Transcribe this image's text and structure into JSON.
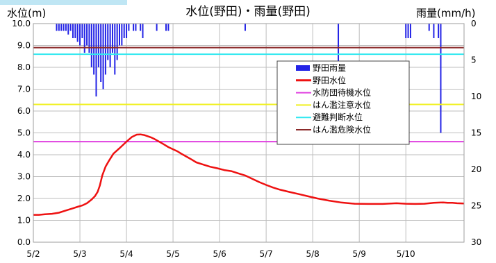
{
  "chart_data": {
    "type": "line",
    "title": "水位(野田)・雨量(野田)",
    "ylabel_left": "水位(m)",
    "ylabel_right": "雨量(mm/h)",
    "ylim_left": [
      0,
      10
    ],
    "ylim_right": [
      0,
      30
    ],
    "right_axis_inverted": true,
    "yticks_left": [
      "0.0",
      "1.0",
      "2.0",
      "3.0",
      "4.0",
      "5.0",
      "6.0",
      "7.0",
      "8.0",
      "9.0",
      "10.0"
    ],
    "yticks_right": [
      "0",
      "5",
      "10",
      "15",
      "20",
      "25",
      "30"
    ],
    "xticks": [
      "5/2",
      "5/3",
      "5/4",
      "5/5",
      "5/6",
      "5/7",
      "5/8",
      "5/9",
      "5/10"
    ],
    "xlim_days": [
      0,
      9.25
    ],
    "grid": true,
    "legend_position": "center-right",
    "colors": {
      "rain": "#2323e6",
      "level": "#ee1111",
      "suibou": "#e040e0",
      "chuui": "#f0f020",
      "hinan": "#30e8f0",
      "kiken": "#8b2a2a",
      "grid": "#bdbdbd",
      "tab": "#bfe6f4"
    },
    "thresholds": [
      {
        "name": "水防団待機水位",
        "value": 4.6,
        "color_key": "suibou"
      },
      {
        "name": "はん濫注意水位",
        "value": 6.3,
        "color_key": "chuui"
      },
      {
        "name": "避難判断水位",
        "value": 8.6,
        "color_key": "hinan"
      },
      {
        "name": "はん濫危険水位",
        "value": 8.9,
        "color_key": "kiken"
      }
    ],
    "legend": [
      "野田雨量",
      "野田水位",
      "水防団待機水位",
      "はん濫注意水位",
      "避難判断水位",
      "はん濫危険水位"
    ],
    "level_series": {
      "name": "野田水位",
      "x": [
        0,
        0.12,
        0.25,
        0.4,
        0.55,
        0.7,
        0.85,
        0.95,
        1.05,
        1.15,
        1.25,
        1.32,
        1.38,
        1.43,
        1.48,
        1.55,
        1.63,
        1.72,
        1.85,
        2.0,
        2.12,
        2.22,
        2.3,
        2.38,
        2.45,
        2.52,
        2.6,
        2.7,
        2.8,
        2.9,
        3.0,
        3.1,
        3.2,
        3.3,
        3.4,
        3.5,
        3.65,
        3.8,
        3.95,
        4.1,
        4.25,
        4.4,
        4.55,
        4.7,
        4.85,
        5.0,
        5.15,
        5.3,
        5.5,
        5.7,
        5.9,
        6.1,
        6.35,
        6.6,
        6.9,
        7.2,
        7.5,
        7.8,
        8.0,
        8.2,
        8.4,
        8.6,
        8.8,
        8.9,
        9.0,
        9.1,
        9.25
      ],
      "y": [
        1.25,
        1.25,
        1.28,
        1.3,
        1.35,
        1.45,
        1.55,
        1.62,
        1.68,
        1.78,
        1.95,
        2.1,
        2.3,
        2.6,
        3.05,
        3.45,
        3.75,
        4.05,
        4.3,
        4.6,
        4.82,
        4.92,
        4.93,
        4.9,
        4.85,
        4.8,
        4.72,
        4.6,
        4.48,
        4.35,
        4.25,
        4.15,
        4.02,
        3.9,
        3.78,
        3.65,
        3.55,
        3.45,
        3.38,
        3.3,
        3.25,
        3.15,
        3.05,
        2.9,
        2.75,
        2.62,
        2.5,
        2.4,
        2.3,
        2.2,
        2.1,
        2.0,
        1.9,
        1.82,
        1.76,
        1.75,
        1.75,
        1.78,
        1.76,
        1.75,
        1.76,
        1.8,
        1.82,
        1.8,
        1.8,
        1.78,
        1.77
      ]
    },
    "rain_series": {
      "name": "野田雨量",
      "x": [
        0.5,
        0.55,
        0.6,
        0.65,
        0.7,
        0.75,
        0.8,
        0.85,
        0.9,
        0.95,
        1.0,
        1.05,
        1.1,
        1.15,
        1.2,
        1.25,
        1.3,
        1.35,
        1.4,
        1.45,
        1.5,
        1.55,
        1.6,
        1.65,
        1.7,
        1.75,
        1.8,
        1.85,
        1.9,
        1.95,
        2.0,
        2.05,
        2.15,
        2.2,
        2.3,
        2.35,
        2.65,
        2.85,
        2.9,
        4.55,
        6.55,
        8.0,
        8.05,
        8.1,
        8.5,
        8.6,
        8.7,
        8.75
      ],
      "values": [
        1,
        1,
        1,
        1,
        1,
        1.5,
        1,
        2,
        2,
        2.5,
        3,
        2,
        4,
        3,
        4,
        6,
        7,
        10,
        6,
        8,
        9,
        7,
        5,
        6,
        4,
        7,
        5,
        3,
        3,
        2,
        2,
        1,
        1,
        1,
        1,
        2,
        1,
        1,
        1,
        1,
        7,
        2,
        2,
        2,
        1,
        2,
        2,
        15
      ]
    }
  }
}
